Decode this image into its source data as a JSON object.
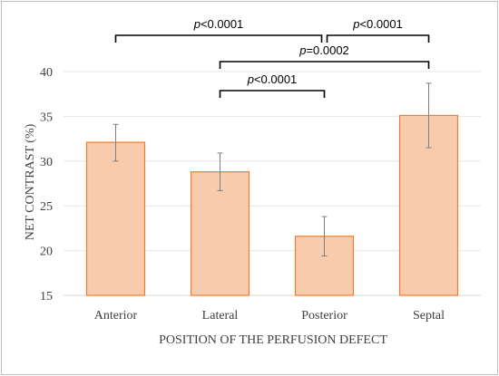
{
  "chart_data": {
    "type": "bar",
    "title": "",
    "xlabel": "POSITION OF THE PERFUSION DEFECT",
    "ylabel": "NET CONTRAST (%)",
    "ylim": [
      15,
      40
    ],
    "yticks": [
      15,
      20,
      25,
      30,
      35,
      40
    ],
    "grid": true,
    "categories": [
      "Anterior",
      "Lateral",
      "Posterior",
      "Septal"
    ],
    "values": [
      32.1,
      28.8,
      21.6,
      35.1
    ],
    "error_low": [
      30.0,
      26.7,
      19.4,
      31.5
    ],
    "error_high": [
      34.1,
      30.9,
      23.8,
      38.7
    ],
    "bar_fill": "#f8cbad",
    "bar_stroke": "#ed7d31",
    "significance": [
      {
        "from": "Anterior",
        "to": "Posterior",
        "p_label": "p",
        "p_value": "<0.0001"
      },
      {
        "from": "Posterior",
        "to": "Septal",
        "p_label": "p",
        "p_value": "<0.0001"
      },
      {
        "from": "Lateral",
        "to": "Septal",
        "p_label": "p",
        "p_value": "=0.0002"
      },
      {
        "from": "Lateral",
        "to": "Posterior",
        "p_label": "p",
        "p_value": "<0.0001"
      }
    ]
  }
}
